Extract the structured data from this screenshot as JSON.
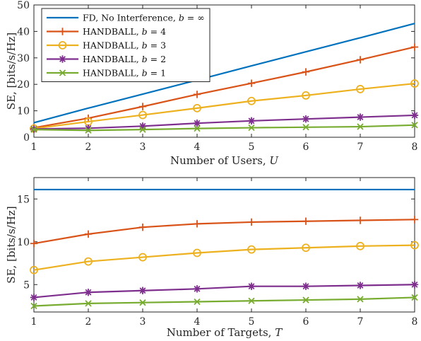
{
  "chart_data": [
    {
      "type": "line",
      "xlabel": "Number of Users, U",
      "ylabel": "SE, [bits/s/Hz]",
      "x": [
        1,
        2,
        3,
        4,
        5,
        6,
        7,
        8
      ],
      "xlim": [
        1,
        8
      ],
      "ylim": [
        0,
        50
      ],
      "xticks": [
        "1",
        "2",
        "3",
        "4",
        "5",
        "6",
        "7",
        "8"
      ],
      "yticks": [
        "0",
        "10",
        "20",
        "30",
        "40",
        "50"
      ],
      "grid": false,
      "legend_position": "top-left",
      "series": [
        {
          "name": "FD, No Interference, b = ∞",
          "color": "#0072BD",
          "marker": "none",
          "values": [
            5.5,
            11.0,
            16.3,
            21.6,
            27.0,
            32.3,
            37.6,
            43.0
          ]
        },
        {
          "name": "HANDBALL, b = 4",
          "color": "#D95319",
          "marker": "plus",
          "values": [
            3.6,
            7.2,
            11.6,
            16.2,
            20.4,
            24.7,
            29.3,
            34.1
          ]
        },
        {
          "name": "HANDBALL, b = 3",
          "color": "#EDB120",
          "marker": "circle",
          "values": [
            3.3,
            5.9,
            8.4,
            11.0,
            13.7,
            15.8,
            18.2,
            20.3
          ]
        },
        {
          "name": "HANDBALL, b = 2",
          "color": "#7E2F8E",
          "marker": "asterisk",
          "values": [
            3.1,
            3.4,
            4.2,
            5.3,
            6.2,
            6.9,
            7.6,
            8.3
          ]
        },
        {
          "name": "HANDBALL, b = 1",
          "color": "#77AC30",
          "marker": "x",
          "values": [
            2.9,
            2.6,
            2.9,
            3.3,
            3.6,
            3.8,
            4.0,
            4.6
          ]
        }
      ]
    },
    {
      "type": "line",
      "xlabel": "Number of Targets, T",
      "ylabel": "SE, [bits/s/Hz]",
      "x": [
        1,
        2,
        3,
        4,
        5,
        6,
        7,
        8
      ],
      "xlim": [
        1,
        8
      ],
      "ylim": [
        1.8,
        17.5
      ],
      "xticks": [
        "1",
        "2",
        "3",
        "4",
        "5",
        "6",
        "7",
        "8"
      ],
      "yticks": [
        "5",
        "10",
        "15"
      ],
      "ytick_values": [
        5,
        10,
        15
      ],
      "grid": false,
      "series": [
        {
          "name": "",
          "color": "#0072BD",
          "marker": "none",
          "values": [
            16.1,
            16.1,
            16.1,
            16.1,
            16.1,
            16.1,
            16.1,
            16.1
          ]
        },
        {
          "name": "",
          "color": "#D95319",
          "marker": "plus",
          "values": [
            9.8,
            10.9,
            11.7,
            12.1,
            12.3,
            12.4,
            12.5,
            12.6
          ]
        },
        {
          "name": "",
          "color": "#EDB120",
          "marker": "circle",
          "values": [
            6.7,
            7.7,
            8.2,
            8.7,
            9.1,
            9.3,
            9.5,
            9.6
          ]
        },
        {
          "name": "",
          "color": "#7E2F8E",
          "marker": "asterisk",
          "values": [
            3.5,
            4.1,
            4.3,
            4.5,
            4.8,
            4.8,
            4.9,
            5.0
          ]
        },
        {
          "name": "",
          "color": "#77AC30",
          "marker": "x",
          "values": [
            2.5,
            2.8,
            2.9,
            3.0,
            3.1,
            3.2,
            3.3,
            3.5
          ]
        }
      ]
    }
  ]
}
